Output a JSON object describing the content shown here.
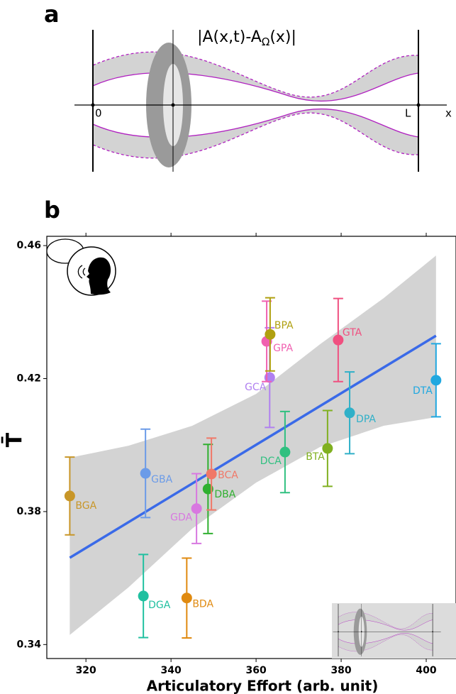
{
  "panel_a": {
    "label": "a",
    "title_parts": [
      "|A(x,t)-A",
      "Ω",
      "(x)|"
    ],
    "origin_label": "0",
    "end_label": "L",
    "axis_label": "x"
  },
  "chart_data": {
    "type": "scatter",
    "panel_label": "b",
    "x_label": "Articulatory Effort (arb. unit)",
    "y_label": "T̄",
    "categories": [
      "BGA",
      "GBA",
      "DGA",
      "BDA",
      "GDA",
      "DBA",
      "BCA",
      "GCA",
      "GPA",
      "BPA",
      "DCA",
      "BTA",
      "GTA",
      "DPA",
      "DTA"
    ],
    "x": [
      316.2,
      334,
      333.5,
      343.7,
      346,
      348.7,
      349.5,
      363.2,
      362.5,
      363.3,
      366.8,
      376.8,
      379.3,
      382,
      402.3
    ],
    "values": [
      0.3847,
      0.3915,
      0.3546,
      0.354,
      0.3809,
      0.3868,
      0.3913,
      0.4203,
      0.4312,
      0.4333,
      0.3979,
      0.399,
      0.4316,
      0.4097,
      0.4195
    ],
    "errors": [
      0.0117,
      0.0133,
      0.0125,
      0.012,
      0.0105,
      0.0134,
      0.0108,
      0.015,
      0.0121,
      0.011,
      0.0122,
      0.0114,
      0.0125,
      0.0123,
      0.011
    ],
    "colors": [
      "#c89628",
      "#6b9be8",
      "#20c0a0",
      "#e08a10",
      "#d878e0",
      "#30b030",
      "#f07868",
      "#b080f0",
      "#f060b0",
      "#b0a010",
      "#30c080",
      "#80b020",
      "#f05080",
      "#30b0c8",
      "#20a8e0"
    ],
    "fit": {
      "x": [
        316.2,
        402.3
      ],
      "y": [
        0.3661,
        0.4329
      ],
      "color": "#3a6ae8"
    },
    "band": {
      "x": [
        316.2,
        330,
        345,
        360,
        375,
        390,
        402.3
      ],
      "upper": [
        0.3962,
        0.3998,
        0.4058,
        0.4154,
        0.4303,
        0.4442,
        0.457
      ],
      "lower": [
        0.3429,
        0.3572,
        0.3749,
        0.3887,
        0.3994,
        0.4058,
        0.4084
      ],
      "color": "#d3d3d3"
    },
    "xlim": [
      310.8,
      407
    ],
    "ylim": [
      0.3358,
      0.4628
    ],
    "xticks": [
      320,
      340,
      360,
      380,
      400
    ],
    "yticks": [
      0.34,
      0.38,
      0.42,
      0.46
    ]
  }
}
